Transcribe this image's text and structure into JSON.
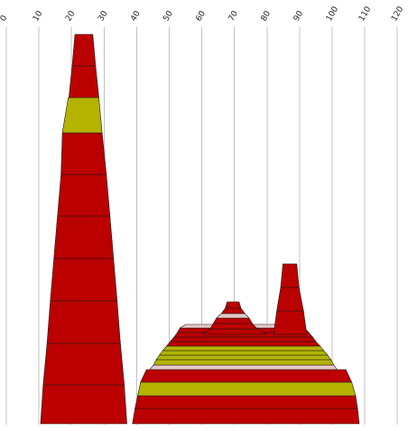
{
  "chart_data": {
    "type": "area",
    "title": "",
    "xlabel": "",
    "ylabel": "",
    "orientation": "x-axis-top",
    "x_ticks": [
      "0",
      "10",
      "20",
      "30",
      "40",
      "50",
      "60",
      "70",
      "80",
      "90",
      "100",
      "110",
      "120"
    ],
    "xlim": [
      0,
      120
    ],
    "grid": true,
    "colors": {
      "red": "#bb0000",
      "olive": "#b3b300",
      "pale": "#e8c8c8"
    },
    "shapes": [
      {
        "name": "",
        "bands": [
          {
            "left": 10.5,
            "right": 37.0,
            "width_top": 10.8,
            "width_top_right": 36.4,
            "color": "red"
          },
          {
            "left": 11.3,
            "right": 36.2,
            "color": "red"
          },
          {
            "left": 12.5,
            "right": 35.0,
            "color": "red"
          },
          {
            "left": 13.5,
            "right": 34.0,
            "color": "red"
          },
          {
            "left": 14.6,
            "right": 32.9,
            "color": "red"
          },
          {
            "left": 15.7,
            "right": 31.8,
            "color": "red"
          },
          {
            "left": 16.8,
            "right": 30.7,
            "color": "red"
          },
          {
            "left": 17.2,
            "right": 29.4,
            "color": "olive"
          },
          {
            "left": 19.2,
            "right": 28.4,
            "color": "red"
          },
          {
            "left": 20.2,
            "right": 27.4,
            "color": "red"
          }
        ]
      },
      {
        "name": "",
        "bands": [
          {
            "left": 38.7,
            "right": 108.3,
            "color": "red"
          },
          {
            "left": 39.5,
            "right": 107.8,
            "color": "red"
          },
          {
            "left": 40.3,
            "right": 107.2,
            "color": "olive"
          },
          {
            "left": 41.2,
            "right": 106.0,
            "color": "red"
          },
          {
            "left": 44.0,
            "right": 101.5,
            "color": "pale"
          },
          {
            "left": 45.2,
            "right": 100.5,
            "color": "olive"
          },
          {
            "left": 46.0,
            "right": 99.6,
            "color": "olive"
          },
          {
            "left": 47.0,
            "right": 98.6,
            "color": "olive"
          },
          {
            "left": 48.0,
            "right": 97.4,
            "color": "olive"
          },
          {
            "left": 49.2,
            "right": 96.3,
            "color": "red"
          },
          {
            "left": 50.3,
            "right": 95.0,
            "color": "red"
          },
          {
            "left": 51.5,
            "right": 94.0,
            "color": "red"
          },
          {
            "left": 52.5,
            "right": 92.8,
            "color": "red"
          },
          {
            "left": 53.3,
            "right": 91.5,
            "color": "pale"
          }
        ]
      },
      {
        "name": "",
        "bands": [
          {
            "left": 60.5,
            "right": 79.5,
            "color": "red"
          },
          {
            "left": 62.5,
            "right": 77.0,
            "color": "red"
          },
          {
            "left": 63.5,
            "right": 75.5,
            "color": "red"
          },
          {
            "left": 64.5,
            "right": 74.5,
            "color": "pale"
          },
          {
            "left": 66.0,
            "right": 73.2,
            "color": "red"
          },
          {
            "left": 67.2,
            "right": 72.0,
            "color": "red"
          }
        ]
      },
      {
        "name": "",
        "bands": [
          {
            "left": 82.0,
            "right": 92.2,
            "color": "red"
          },
          {
            "left": 83.0,
            "right": 91.2,
            "color": "red"
          },
          {
            "left": 84.2,
            "right": 89.8,
            "color": "red"
          }
        ]
      }
    ]
  }
}
